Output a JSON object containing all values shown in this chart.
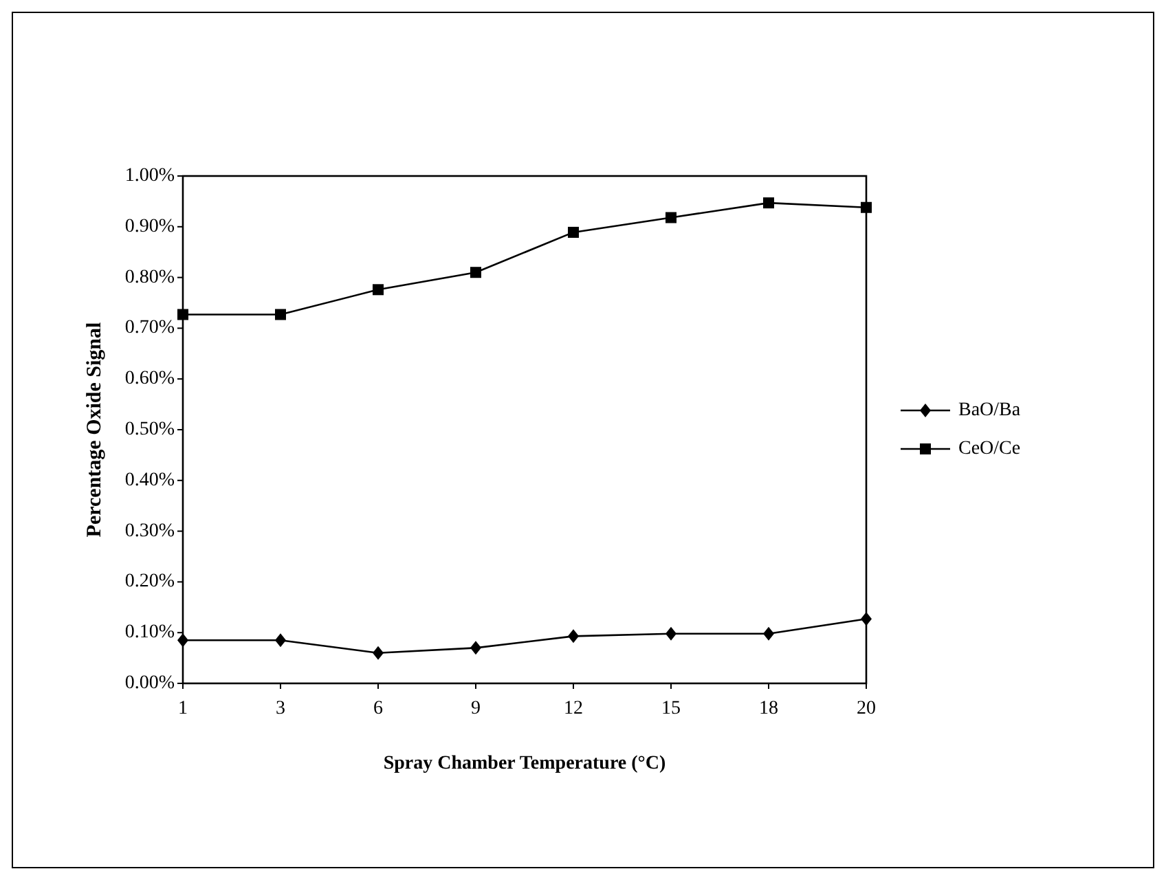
{
  "chart_data": {
    "type": "line",
    "xlabel": "Spray Chamber Temperature (°C)",
    "ylabel": "Percentage Oxide Signal",
    "categories": [
      "1",
      "3",
      "6",
      "9",
      "12",
      "15",
      "18",
      "20"
    ],
    "series": [
      {
        "name": "BaO/Ba",
        "color": "#000000",
        "marker": "diamond",
        "values": [
          0.085,
          0.085,
          0.06,
          0.07,
          0.093,
          0.098,
          0.098,
          0.127
        ]
      },
      {
        "name": "CeO/Ce",
        "color": "#000000",
        "marker": "square",
        "values": [
          0.727,
          0.727,
          0.776,
          0.81,
          0.889,
          0.918,
          0.947,
          0.938
        ]
      }
    ],
    "ylim": [
      0,
      1
    ],
    "yticks": [
      {
        "value": 0,
        "label": "0.00%"
      },
      {
        "value": 0.1,
        "label": "0.10%"
      },
      {
        "value": 0.2,
        "label": "0.20%"
      },
      {
        "value": 0.3,
        "label": "0.30%"
      },
      {
        "value": 0.4,
        "label": "0.40%"
      },
      {
        "value": 0.5,
        "label": "0.50%"
      },
      {
        "value": 0.6,
        "label": "0.60%"
      },
      {
        "value": 0.7,
        "label": "0.70%"
      },
      {
        "value": 0.8,
        "label": "0.80%"
      },
      {
        "value": 0.9,
        "label": "0.90%"
      },
      {
        "value": 1,
        "label": "1.00%"
      }
    ],
    "grid": false,
    "legend": "right",
    "line_style": "solid"
  }
}
